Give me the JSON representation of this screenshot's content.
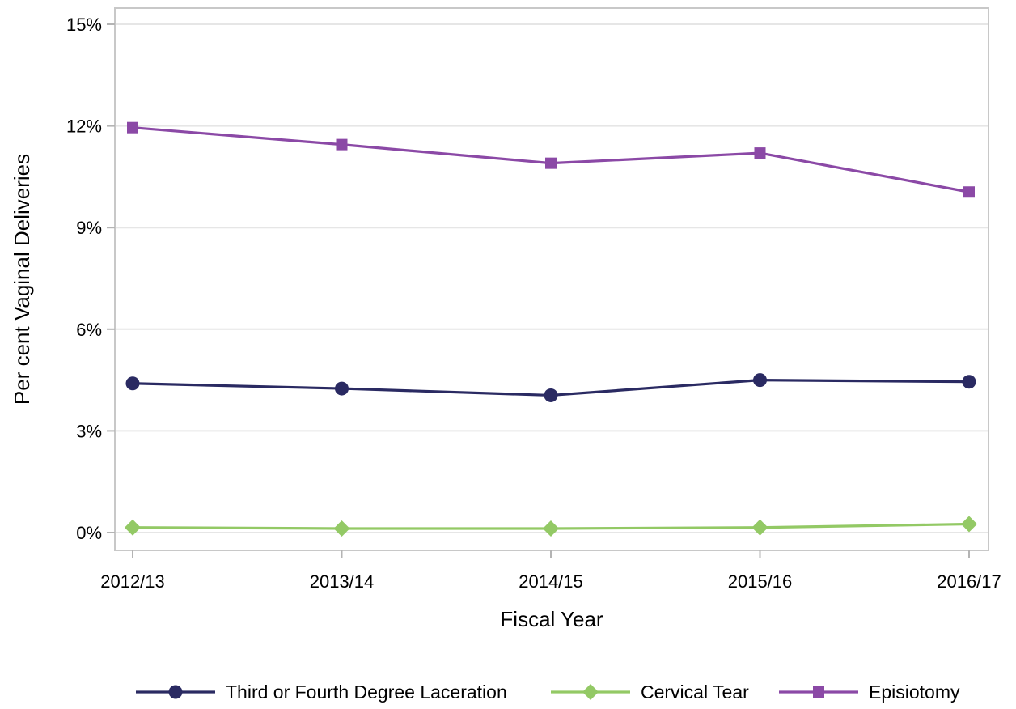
{
  "chart_data": {
    "type": "line",
    "title": "",
    "xlabel": "Fiscal Year",
    "ylabel": "Per cent Vaginal Deliveries",
    "categories": [
      "2012/13",
      "2013/14",
      "2014/15",
      "2015/16",
      "2016/17"
    ],
    "ylim": [
      0,
      15
    ],
    "yticks": [
      0,
      3,
      6,
      9,
      12,
      15
    ],
    "ytick_labels": [
      "0%",
      "3%",
      "6%",
      "9%",
      "12%",
      "15%"
    ],
    "grid": "horizontal",
    "legend_position": "bottom",
    "series": [
      {
        "name": "Third or Fourth Degree Laceration",
        "color": "#2a2a62",
        "marker": "circle",
        "values": [
          4.4,
          4.25,
          4.05,
          4.5,
          4.45
        ]
      },
      {
        "name": "Cervical Tear",
        "color": "#93c965",
        "marker": "diamond",
        "values": [
          0.15,
          0.12,
          0.12,
          0.15,
          0.25
        ]
      },
      {
        "name": "Episiotomy",
        "color": "#8b49a6",
        "marker": "square",
        "values": [
          11.95,
          11.45,
          10.9,
          11.2,
          10.05
        ]
      }
    ]
  }
}
